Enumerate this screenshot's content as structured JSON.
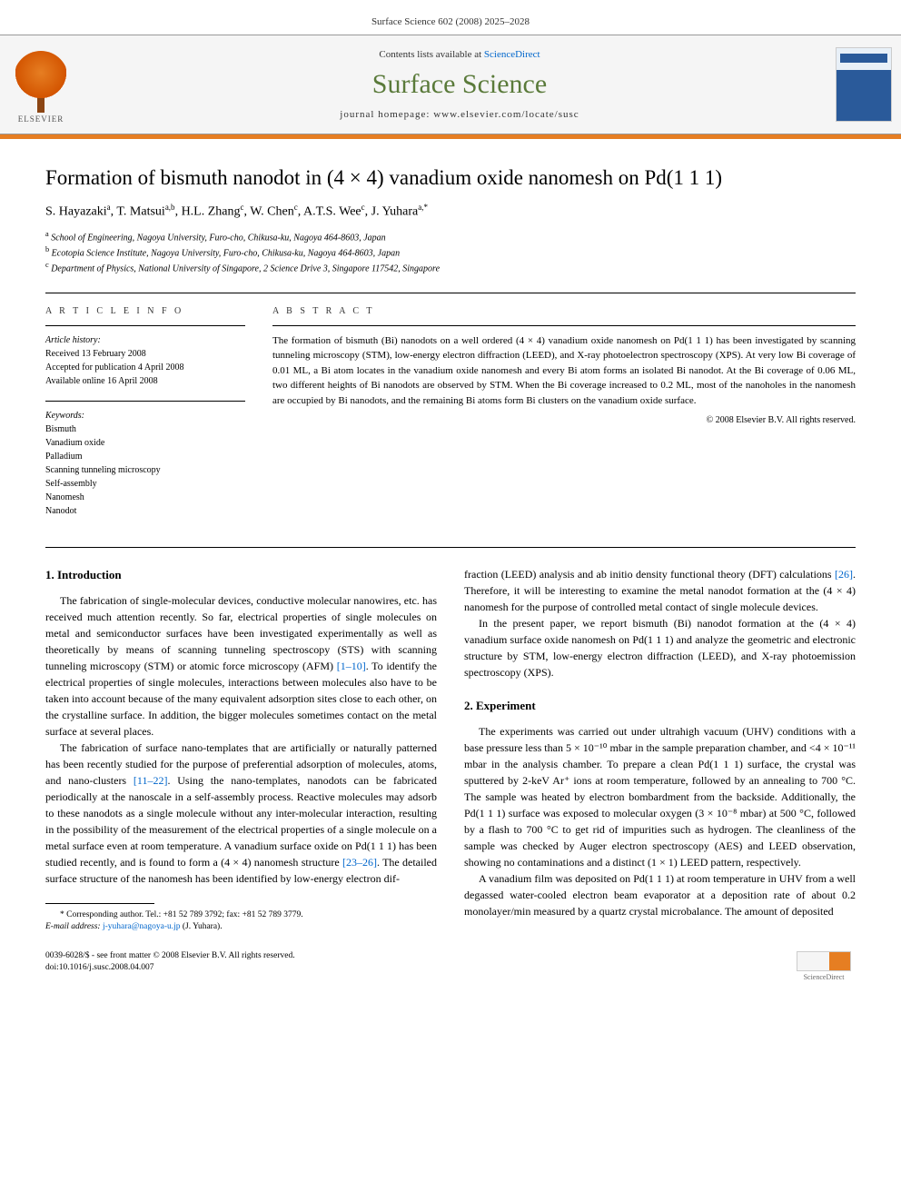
{
  "page_header": "Surface Science 602 (2008) 2025–2028",
  "banner": {
    "publisher_name": "ELSEVIER",
    "contents_prefix": "Contents lists available at ",
    "contents_link": "ScienceDirect",
    "journal_name": "Surface Science",
    "homepage_prefix": "journal homepage: ",
    "homepage_url": "www.elsevier.com/locate/susc",
    "cover_label": "surface science"
  },
  "title": "Formation of bismuth nanodot in (4 × 4) vanadium oxide nanomesh on Pd(1 1 1)",
  "authors_html": "S. Hayazaki<sup>a</sup>, T. Matsui<sup>a,b</sup>, H.L. Zhang<sup>c</sup>, W. Chen<sup>c</sup>, A.T.S. Wee<sup>c</sup>, J. Yuhara<sup>a,*</sup>",
  "affiliations": {
    "a": "School of Engineering, Nagoya University, Furo-cho, Chikusa-ku, Nagoya 464-8603, Japan",
    "b": "Ecotopia Science Institute, Nagoya University, Furo-cho, Chikusa-ku, Nagoya 464-8603, Japan",
    "c": "Department of Physics, National University of Singapore, 2 Science Drive 3, Singapore 117542, Singapore"
  },
  "info": {
    "heading": "A R T I C L E   I N F O",
    "history_label": "Article history:",
    "received": "Received 13 February 2008",
    "accepted": "Accepted for publication 4 April 2008",
    "online": "Available online 16 April 2008",
    "keywords_label": "Keywords:",
    "keywords": [
      "Bismuth",
      "Vanadium oxide",
      "Palladium",
      "Scanning tunneling microscopy",
      "Self-assembly",
      "Nanomesh",
      "Nanodot"
    ]
  },
  "abstract": {
    "heading": "A B S T R A C T",
    "text": "The formation of bismuth (Bi) nanodots on a well ordered (4 × 4) vanadium oxide nanomesh on Pd(1 1 1) has been investigated by scanning tunneling microscopy (STM), low-energy electron diffraction (LEED), and X-ray photoelectron spectroscopy (XPS). At very low Bi coverage of 0.01 ML, a Bi atom locates in the vanadium oxide nanomesh and every Bi atom forms an isolated Bi nanodot. At the Bi coverage of 0.06 ML, two different heights of Bi nanodots are observed by STM. When the Bi coverage increased to 0.2 ML, most of the nanoholes in the nanomesh are occupied by Bi nanodots, and the remaining Bi atoms form Bi clusters on the vanadium oxide surface.",
    "copyright": "© 2008 Elsevier B.V. All rights reserved."
  },
  "sections": {
    "intro_heading": "1. Introduction",
    "intro_p1": "The fabrication of single-molecular devices, conductive molecular nanowires, etc. has received much attention recently. So far, electrical properties of single molecules on metal and semiconductor surfaces have been investigated experimentally as well as theoretically by means of scanning tunneling spectroscopy (STS) with scanning tunneling microscopy (STM) or atomic force microscopy (AFM) ",
    "intro_ref1": "[1–10]",
    "intro_p1b": ". To identify the electrical properties of single molecules, interactions between molecules also have to be taken into account because of the many equivalent adsorption sites close to each other, on the crystalline surface. In addition, the bigger molecules sometimes contact on the metal surface at several places.",
    "intro_p2a": "The fabrication of surface nano-templates that are artificially or naturally patterned has been recently studied for the purpose of preferential adsorption of molecules, atoms, and nano-clusters ",
    "intro_ref2": "[11–22]",
    "intro_p2b": ". Using the nano-templates, nanodots can be fabricated periodically at the nanoscale in a self-assembly process. Reactive molecules may adsorb to these nanodots as a single molecule without any inter-molecular interaction, resulting in the possibility of the measurement of the electrical properties of a single molecule on a metal surface even at room temperature. A vanadium surface oxide on Pd(1 1 1) has been studied recently, and is found to form a (4 × 4) nanomesh structure ",
    "intro_ref3": "[23–26]",
    "intro_p2c": ". The detailed surface structure of the nanomesh has been identified by low-energy electron dif-",
    "intro_p3a": "fraction (LEED) analysis and ab initio density functional theory (DFT) calculations ",
    "intro_ref4": "[26]",
    "intro_p3b": ". Therefore, it will be interesting to examine the metal nanodot formation at the (4 × 4) nanomesh for the purpose of controlled metal contact of single molecule devices.",
    "intro_p4": "In the present paper, we report bismuth (Bi) nanodot formation at the (4 × 4) vanadium surface oxide nanomesh on Pd(1 1 1) and analyze the geometric and electronic structure by STM, low-energy electron diffraction (LEED), and X-ray photoemission spectroscopy (XPS).",
    "exp_heading": "2. Experiment",
    "exp_p1": "The experiments was carried out under ultrahigh vacuum (UHV) conditions with a base pressure less than 5 × 10⁻¹⁰ mbar in the sample preparation chamber, and <4 × 10⁻¹¹ mbar in the analysis chamber. To prepare a clean Pd(1 1 1) surface, the crystal was sputtered by 2-keV Ar⁺ ions at room temperature, followed by an annealing to 700 °C. The sample was heated by electron bombardment from the backside. Additionally, the Pd(1 1 1) surface was exposed to molecular oxygen (3 × 10⁻⁸ mbar) at 500 °C, followed by a flash to 700 °C to get rid of impurities such as hydrogen. The cleanliness of the sample was checked by Auger electron spectroscopy (AES) and LEED observation, showing no contaminations and a distinct (1 × 1) LEED pattern, respectively.",
    "exp_p2": "A vanadium film was deposited on Pd(1 1 1) at room temperature in UHV from a well degassed water-cooled electron beam evaporator at a deposition rate of about 0.2 monolayer/min measured by a quartz crystal microbalance. The amount of deposited"
  },
  "footnote": {
    "corresp": "* Corresponding author. Tel.: +81 52 789 3792; fax: +81 52 789 3779.",
    "email_label": "E-mail address:",
    "email": "j-yuhara@nagoya-u.jp",
    "email_name": "(J. Yuhara)."
  },
  "footer": {
    "issn": "0039-6028/$ - see front matter © 2008 Elsevier B.V. All rights reserved.",
    "doi": "doi:10.1016/j.susc.2008.04.007",
    "sd_label": "ScienceDirect"
  }
}
